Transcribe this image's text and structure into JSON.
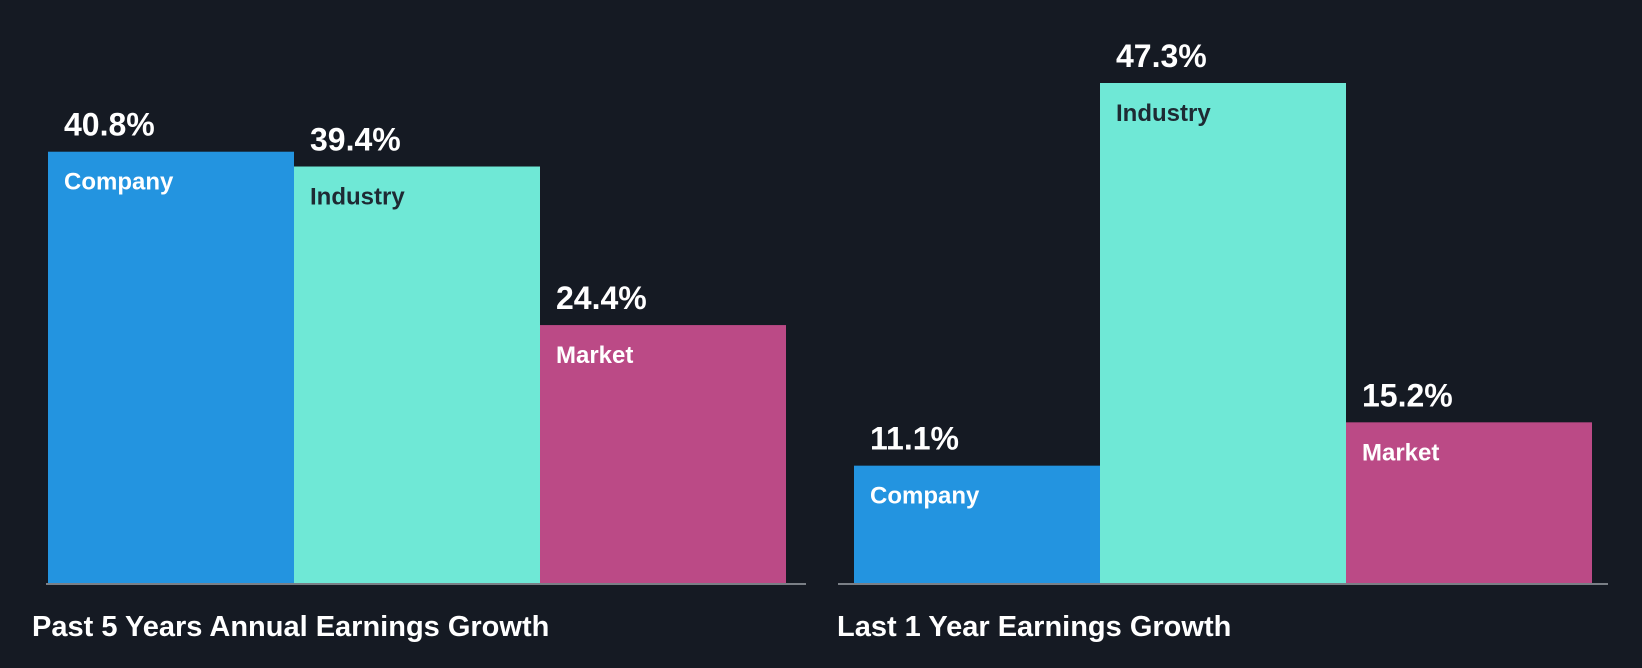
{
  "colors": {
    "background": "#151a23",
    "company": "#2394e0",
    "industry": "#6fe8d6",
    "market": "#bb4a86",
    "baseline": "#7a7f86"
  },
  "chart_data": [
    {
      "type": "bar",
      "title": "Past 5 Years Annual Earnings Growth",
      "categories": [
        "Company",
        "Industry",
        "Market"
      ],
      "values": [
        40.8,
        39.4,
        24.4
      ],
      "value_labels": [
        "40.8%",
        "39.4%",
        "24.4%"
      ],
      "unit": "%",
      "ylim": [
        0,
        47.3
      ],
      "grid": false,
      "legend": "none"
    },
    {
      "type": "bar",
      "title": "Last 1 Year Earnings Growth",
      "categories": [
        "Company",
        "Industry",
        "Market"
      ],
      "values": [
        11.1,
        47.3,
        15.2
      ],
      "value_labels": [
        "11.1%",
        "47.3%",
        "15.2%"
      ],
      "unit": "%",
      "ylim": [
        0,
        47.3
      ],
      "grid": false,
      "legend": "none"
    }
  ]
}
